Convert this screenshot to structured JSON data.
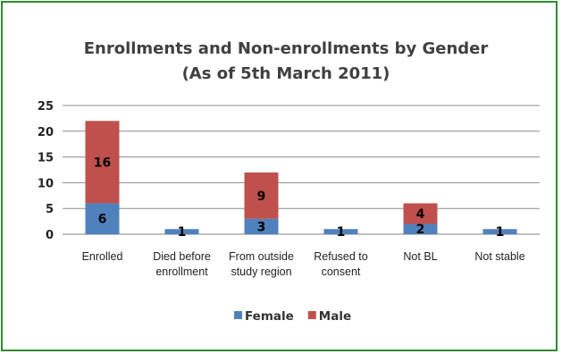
{
  "chart_data": {
    "type": "bar",
    "stacked": true,
    "title": [
      "Enrollments and Non-enrollments by Gender",
      "(As of 5th March 2011)"
    ],
    "categories": [
      [
        "Enrolled"
      ],
      [
        "Died before",
        "enrollment"
      ],
      [
        "From outside",
        "study region"
      ],
      [
        "Refused to",
        "consent"
      ],
      [
        "Not BL"
      ],
      [
        "Not stable"
      ]
    ],
    "series": [
      {
        "name": "Female",
        "color": "#4f81bd",
        "values": [
          6,
          1,
          3,
          1,
          2,
          1
        ]
      },
      {
        "name": "Male",
        "color": "#c0504d",
        "values": [
          16,
          0,
          9,
          0,
          4,
          0
        ]
      }
    ],
    "ylim": [
      0,
      25
    ],
    "yticks": [
      0,
      5,
      10,
      15,
      20,
      25
    ],
    "grid": true,
    "legend_position": "bottom"
  }
}
